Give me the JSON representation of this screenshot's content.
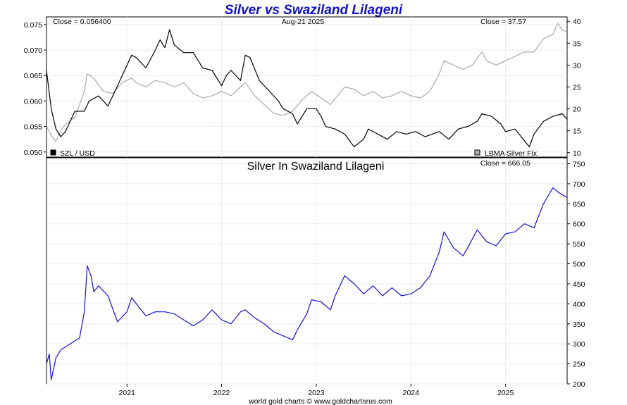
{
  "chart_data": [
    {
      "type": "line",
      "title": "Silver vs Swaziland Lilageni",
      "date_label": "Aug-21  2025",
      "left_close_label": "Close = 0.056400",
      "right_close_label": "Close = 37.57",
      "left_axis": {
        "ylim": [
          0.049,
          0.0765
        ],
        "ticks": [
          "0.050",
          "0.055",
          "0.060",
          "0.065",
          "0.070",
          "0.075"
        ]
      },
      "right_axis": {
        "ylim": [
          9,
          41
        ],
        "ticks": [
          "10",
          "15",
          "20",
          "25",
          "30",
          "35",
          "40"
        ]
      },
      "legend": {
        "placement": "bottom",
        "left_entry": "SZL / USD",
        "right_entry": "LBMA Silver Fix"
      },
      "x_range": [
        2020.15,
        2025.65
      ],
      "series": [
        {
          "name": "SZL / USD",
          "axis": "left",
          "color": "#000000",
          "points": [
            [
              2020.15,
              0.066
            ],
            [
              2020.2,
              0.0585
            ],
            [
              2020.25,
              0.0545
            ],
            [
              2020.3,
              0.053
            ],
            [
              2020.35,
              0.054
            ],
            [
              2020.45,
              0.058
            ],
            [
              2020.55,
              0.058
            ],
            [
              2020.6,
              0.06
            ],
            [
              2020.7,
              0.061
            ],
            [
              2020.8,
              0.059
            ],
            [
              2020.9,
              0.063
            ],
            [
              2021.0,
              0.067
            ],
            [
              2021.05,
              0.069
            ],
            [
              2021.1,
              0.0685
            ],
            [
              2021.2,
              0.0665
            ],
            [
              2021.3,
              0.07
            ],
            [
              2021.35,
              0.072
            ],
            [
              2021.4,
              0.0705
            ],
            [
              2021.45,
              0.074
            ],
            [
              2021.5,
              0.071
            ],
            [
              2021.6,
              0.0695
            ],
            [
              2021.7,
              0.0695
            ],
            [
              2021.8,
              0.0665
            ],
            [
              2021.9,
              0.066
            ],
            [
              2022.0,
              0.063
            ],
            [
              2022.05,
              0.065
            ],
            [
              2022.1,
              0.066
            ],
            [
              2022.2,
              0.064
            ],
            [
              2022.25,
              0.069
            ],
            [
              2022.3,
              0.0685
            ],
            [
              2022.4,
              0.064
            ],
            [
              2022.5,
              0.062
            ],
            [
              2022.6,
              0.06
            ],
            [
              2022.65,
              0.0585
            ],
            [
              2022.75,
              0.0575
            ],
            [
              2022.8,
              0.0555
            ],
            [
              2022.9,
              0.0585
            ],
            [
              2023.0,
              0.0585
            ],
            [
              2023.05,
              0.057
            ],
            [
              2023.1,
              0.055
            ],
            [
              2023.2,
              0.0545
            ],
            [
              2023.3,
              0.0535
            ],
            [
              2023.4,
              0.051
            ],
            [
              2023.5,
              0.0525
            ],
            [
              2023.55,
              0.0545
            ],
            [
              2023.65,
              0.0535
            ],
            [
              2023.75,
              0.0525
            ],
            [
              2023.85,
              0.054
            ],
            [
              2023.95,
              0.0535
            ],
            [
              2024.05,
              0.054
            ],
            [
              2024.15,
              0.053
            ],
            [
              2024.3,
              0.054
            ],
            [
              2024.4,
              0.0525
            ],
            [
              2024.5,
              0.0545
            ],
            [
              2024.6,
              0.055
            ],
            [
              2024.7,
              0.056
            ],
            [
              2024.75,
              0.0575
            ],
            [
              2024.85,
              0.057
            ],
            [
              2024.95,
              0.0555
            ],
            [
              2025.0,
              0.054
            ],
            [
              2025.1,
              0.0545
            ],
            [
              2025.25,
              0.051
            ],
            [
              2025.3,
              0.0535
            ],
            [
              2025.4,
              0.056
            ],
            [
              2025.5,
              0.057
            ],
            [
              2025.6,
              0.0575
            ],
            [
              2025.65,
              0.0564
            ]
          ]
        },
        {
          "name": "LBMA Silver Fix",
          "axis": "right",
          "color": "#aaaaaa",
          "points": [
            [
              2020.15,
              16
            ],
            [
              2020.2,
              14
            ],
            [
              2020.25,
              12.5
            ],
            [
              2020.3,
              15
            ],
            [
              2020.35,
              16.5
            ],
            [
              2020.45,
              18
            ],
            [
              2020.55,
              24
            ],
            [
              2020.58,
              28
            ],
            [
              2020.65,
              27
            ],
            [
              2020.75,
              24
            ],
            [
              2020.85,
              23.5
            ],
            [
              2020.95,
              26
            ],
            [
              2021.05,
              27
            ],
            [
              2021.1,
              26
            ],
            [
              2021.2,
              25
            ],
            [
              2021.3,
              26.5
            ],
            [
              2021.4,
              26
            ],
            [
              2021.5,
              25
            ],
            [
              2021.6,
              26
            ],
            [
              2021.7,
              23.5
            ],
            [
              2021.8,
              22.5
            ],
            [
              2021.9,
              23
            ],
            [
              2022.0,
              24
            ],
            [
              2022.1,
              23
            ],
            [
              2022.2,
              25
            ],
            [
              2022.25,
              26
            ],
            [
              2022.35,
              23
            ],
            [
              2022.45,
              21
            ],
            [
              2022.55,
              19
            ],
            [
              2022.65,
              18.5
            ],
            [
              2022.75,
              19.5
            ],
            [
              2022.85,
              22
            ],
            [
              2022.95,
              24
            ],
            [
              2023.05,
              22.5
            ],
            [
              2023.15,
              21
            ],
            [
              2023.3,
              25
            ],
            [
              2023.4,
              24.5
            ],
            [
              2023.5,
              23
            ],
            [
              2023.6,
              24
            ],
            [
              2023.7,
              22.5
            ],
            [
              2023.8,
              23
            ],
            [
              2023.9,
              24
            ],
            [
              2024.0,
              23
            ],
            [
              2024.1,
              22.5
            ],
            [
              2024.2,
              24
            ],
            [
              2024.3,
              28
            ],
            [
              2024.35,
              31
            ],
            [
              2024.45,
              30
            ],
            [
              2024.55,
              29
            ],
            [
              2024.65,
              30
            ],
            [
              2024.75,
              33
            ],
            [
              2024.8,
              31
            ],
            [
              2024.9,
              30
            ],
            [
              2025.0,
              31
            ],
            [
              2025.1,
              32
            ],
            [
              2025.2,
              33
            ],
            [
              2025.3,
              33
            ],
            [
              2025.4,
              36
            ],
            [
              2025.5,
              37
            ],
            [
              2025.55,
              39.5
            ],
            [
              2025.6,
              38
            ],
            [
              2025.65,
              37.57
            ]
          ]
        }
      ]
    },
    {
      "type": "line",
      "title": "Silver In Swaziland Lilageni",
      "close_label": "Close = 666.05",
      "ylim": [
        200,
        765
      ],
      "y_ticks": [
        "200",
        "250",
        "300",
        "350",
        "400",
        "450",
        "500",
        "550",
        "600",
        "650",
        "700",
        "750"
      ],
      "x_range": [
        2020.15,
        2025.65
      ],
      "x_ticks": [
        {
          "label": "2021",
          "value": 2021.0
        },
        {
          "label": "2022",
          "value": 2022.0
        },
        {
          "label": "2023",
          "value": 2023.0
        },
        {
          "label": "2024",
          "value": 2024.0
        },
        {
          "label": "2025",
          "value": 2025.0
        }
      ],
      "series": [
        {
          "name": "Silver In Swaziland Lilageni",
          "color": "#1010e0",
          "points": [
            [
              2020.15,
              250
            ],
            [
              2020.18,
              275
            ],
            [
              2020.2,
              210
            ],
            [
              2020.25,
              265
            ],
            [
              2020.3,
              285
            ],
            [
              2020.4,
              300
            ],
            [
              2020.5,
              315
            ],
            [
              2020.55,
              380
            ],
            [
              2020.58,
              495
            ],
            [
              2020.62,
              470
            ],
            [
              2020.65,
              430
            ],
            [
              2020.7,
              445
            ],
            [
              2020.8,
              420
            ],
            [
              2020.9,
              355
            ],
            [
              2021.0,
              380
            ],
            [
              2021.05,
              415
            ],
            [
              2021.1,
              400
            ],
            [
              2021.2,
              370
            ],
            [
              2021.3,
              380
            ],
            [
              2021.4,
              380
            ],
            [
              2021.5,
              375
            ],
            [
              2021.6,
              360
            ],
            [
              2021.7,
              345
            ],
            [
              2021.8,
              360
            ],
            [
              2021.9,
              385
            ],
            [
              2022.0,
              360
            ],
            [
              2022.1,
              350
            ],
            [
              2022.2,
              380
            ],
            [
              2022.25,
              385
            ],
            [
              2022.35,
              365
            ],
            [
              2022.45,
              350
            ],
            [
              2022.55,
              330
            ],
            [
              2022.65,
              320
            ],
            [
              2022.75,
              310
            ],
            [
              2022.8,
              335
            ],
            [
              2022.9,
              375
            ],
            [
              2022.95,
              410
            ],
            [
              2023.05,
              405
            ],
            [
              2023.15,
              385
            ],
            [
              2023.2,
              420
            ],
            [
              2023.3,
              470
            ],
            [
              2023.4,
              450
            ],
            [
              2023.5,
              425
            ],
            [
              2023.6,
              445
            ],
            [
              2023.7,
              420
            ],
            [
              2023.8,
              440
            ],
            [
              2023.9,
              420
            ],
            [
              2024.0,
              425
            ],
            [
              2024.1,
              440
            ],
            [
              2024.2,
              470
            ],
            [
              2024.3,
              530
            ],
            [
              2024.35,
              580
            ],
            [
              2024.45,
              540
            ],
            [
              2024.55,
              520
            ],
            [
              2024.6,
              540
            ],
            [
              2024.7,
              585
            ],
            [
              2024.8,
              555
            ],
            [
              2024.9,
              545
            ],
            [
              2025.0,
              575
            ],
            [
              2025.1,
              580
            ],
            [
              2025.2,
              600
            ],
            [
              2025.3,
              590
            ],
            [
              2025.4,
              650
            ],
            [
              2025.45,
              670
            ],
            [
              2025.5,
              690
            ],
            [
              2025.55,
              680
            ],
            [
              2025.6,
              672
            ],
            [
              2025.65,
              666.05
            ]
          ]
        }
      ]
    }
  ],
  "footer": "world gold charts © www.goldchartsrus.com"
}
